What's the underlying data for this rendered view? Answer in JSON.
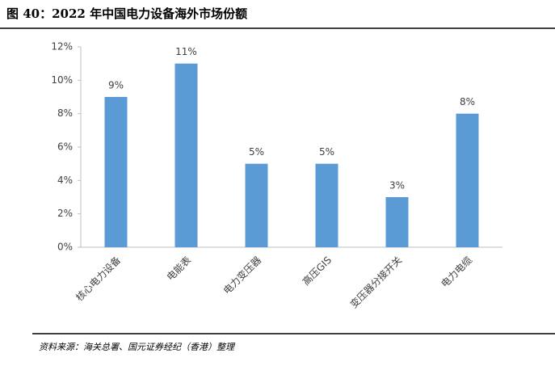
{
  "chart_data": {
    "type": "bar",
    "title": "图 40：2022 年中国电力设备海外市场份额",
    "source": "资料来源：海关总署、国元证券经纪（香港）整理",
    "categories": [
      "核心电力设备",
      "电能表",
      "电力变压器",
      "高压GIS",
      "变压器分接开关",
      "电力电缆"
    ],
    "values": [
      9,
      11,
      5,
      5,
      3,
      8
    ],
    "value_labels": [
      "9%",
      "11%",
      "5%",
      "5%",
      "3%",
      "8%"
    ],
    "color": "#5b9bd5",
    "ylim": [
      0,
      12
    ],
    "yticks": [
      {
        "value": 0,
        "label": "0%"
      },
      {
        "value": 2,
        "label": "2%"
      },
      {
        "value": 4,
        "label": "4%"
      },
      {
        "value": 6,
        "label": "6%"
      },
      {
        "value": 8,
        "label": "8%"
      },
      {
        "value": 10,
        "label": "10%"
      },
      {
        "value": 12,
        "label": "12%"
      }
    ],
    "grid": false
  }
}
